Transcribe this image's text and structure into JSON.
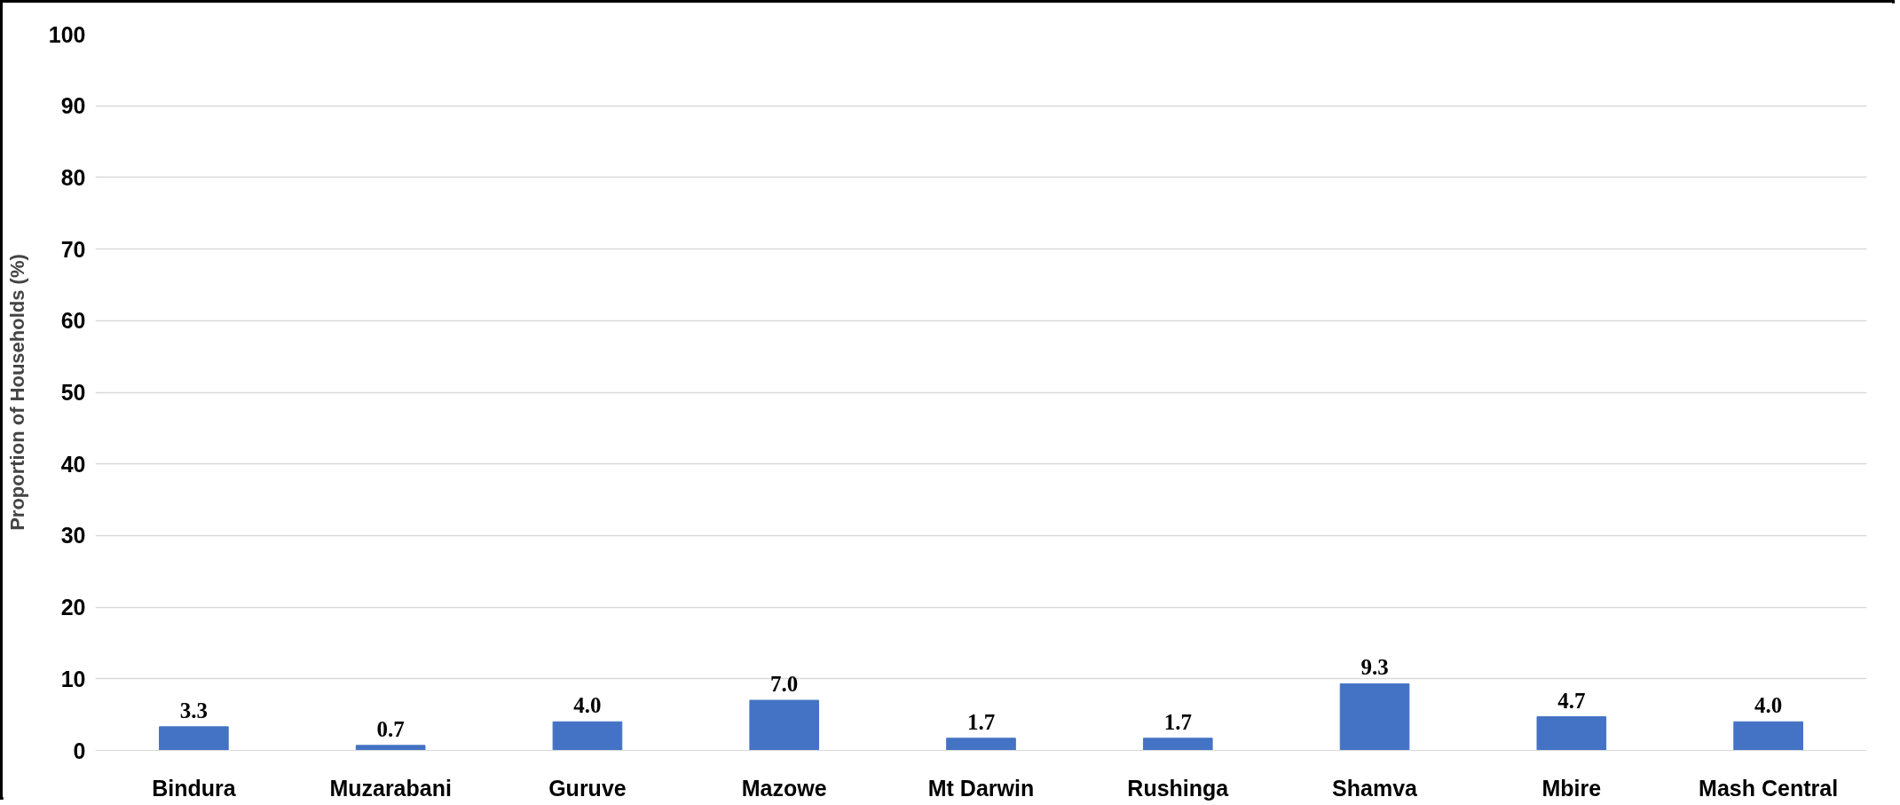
{
  "chart_data": {
    "type": "bar",
    "ylabel": "Proportion of Households (%)",
    "categories": [
      "Bindura",
      "Muzarabani",
      "Guruve",
      "Mazowe",
      "Mt Darwin",
      "Rushinga",
      "Shamva",
      "Mbire",
      "Mash Central"
    ],
    "values": [
      3.3,
      0.7,
      4.0,
      7.0,
      1.7,
      1.7,
      9.3,
      4.7,
      4.0
    ],
    "value_labels": [
      "3.3",
      "0.7",
      "4.0",
      "7.0",
      "1.7",
      "1.7",
      "9.3",
      "4.7",
      "4.0"
    ],
    "color": "#4472c4",
    "ylim": [
      0,
      100
    ],
    "yticks": [
      0,
      10,
      20,
      30,
      40,
      50,
      60,
      70,
      80,
      90,
      100
    ],
    "grid": "y"
  }
}
